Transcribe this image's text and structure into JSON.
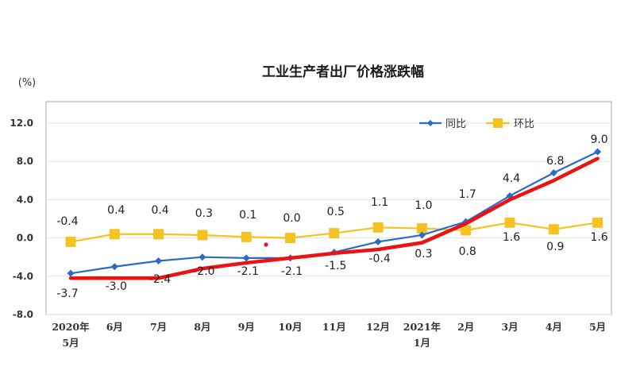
{
  "colors": {
    "yoy": "#2a6bc9",
    "mom": "#f5c321",
    "trend": "#ee1111",
    "frame": "#b9b9b9",
    "grid": "#e3e3e3"
  },
  "chart_data": {
    "type": "line",
    "title": "工业生产者出厂价格涨跌幅",
    "unit_label": "(%)",
    "ylim": [
      -8.0,
      12.0
    ],
    "yticks": [
      "12.0",
      "8.0",
      "4.0",
      "0.0",
      "-4.0",
      "-8.0"
    ],
    "ytick_values": [
      12,
      8,
      4,
      0,
      -4,
      -8
    ],
    "categories": [
      [
        "2020年",
        "5月"
      ],
      [
        "6月"
      ],
      [
        "7月"
      ],
      [
        "8月"
      ],
      [
        "9月"
      ],
      [
        "10月"
      ],
      [
        "11月"
      ],
      [
        "12月"
      ],
      [
        "2021年",
        "1月"
      ],
      [
        "2月"
      ],
      [
        "3月"
      ],
      [
        "4月"
      ],
      [
        "5月"
      ]
    ],
    "legend_position": "top-right",
    "grid": true,
    "series": [
      {
        "name": "同比",
        "key": "yoy",
        "values": [
          -3.7,
          -3.0,
          -2.4,
          -2.0,
          -2.1,
          -2.1,
          -1.5,
          -0.4,
          0.3,
          1.7,
          4.4,
          6.8,
          9.0
        ],
        "labels": [
          "-3.7",
          "-3.0",
          "-2.4",
          "-2.0",
          "-2.1",
          "-2.1",
          "-1.5",
          "-0.4",
          "0.3",
          "1.7",
          "4.4",
          "6.8",
          "9.0"
        ]
      },
      {
        "name": "环比",
        "key": "mom",
        "values": [
          -0.4,
          0.4,
          0.4,
          0.3,
          0.1,
          0.0,
          0.5,
          1.1,
          1.0,
          0.8,
          1.6,
          0.9,
          1.6
        ],
        "labels": [
          "-0.4",
          "0.4",
          "0.4",
          "0.3",
          "0.1",
          "0.0",
          "0.5",
          "1.1",
          "1.0",
          "0.8",
          "1.6",
          "0.9",
          "1.6"
        ]
      }
    ],
    "overlay_trend": {
      "values": [
        -4.2,
        -4.2,
        -4.2,
        -3.2,
        -2.6,
        -2.1,
        -1.6,
        -1.2,
        -0.5,
        1.5,
        4.0,
        6.0,
        8.3
      ]
    }
  }
}
